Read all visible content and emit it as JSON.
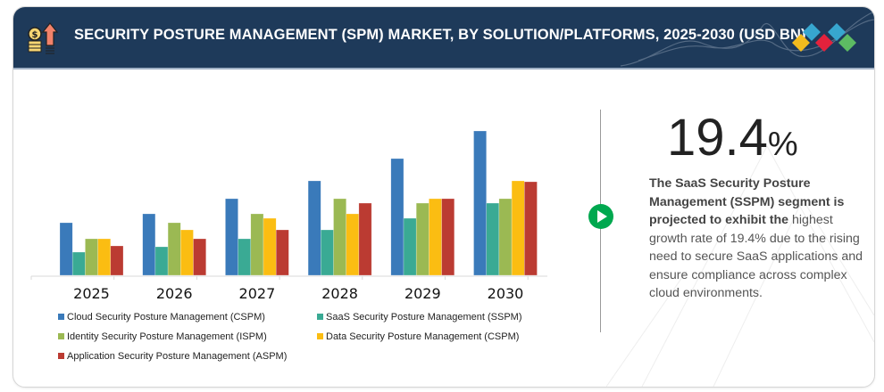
{
  "header": {
    "title": "SECURITY POSTURE MANAGEMENT (SPM) MARKET, BY SOLUTION/PLATFORMS, 2025-2030 (USD BN)",
    "icon": "coins-growth-arrow-icon",
    "logo": "colored-diamonds-logo"
  },
  "highlight": {
    "stat_value": "19.4",
    "stat_unit": "%",
    "bold_text": "The SaaS Security Posture Management (SSPM) segment is projected to exhibit the",
    "body_text": " highest growth rate of 19.4% due to the rising need to secure SaaS applications and ensure compliance across complex cloud environments.",
    "marker_icon": "play-circle-icon"
  },
  "chart_data": {
    "type": "bar",
    "title": "SECURITY POSTURE MANAGEMENT (SPM) MARKET, BY SOLUTION/PLATFORMS, 2025-2030 (USD BN)",
    "xlabel": "",
    "ylabel": "",
    "note": "No y-axis or value labels shown; values are relative bar heights (arbitrary units).",
    "ylim": [
      0,
      170
    ],
    "grid": false,
    "legend_position": "bottom",
    "categories": [
      "2025",
      "2026",
      "2027",
      "2028",
      "2029",
      "2030"
    ],
    "series": [
      {
        "name": "Cloud Security Posture Management (CSPM)",
        "color": "#3a7aba",
        "values": [
          59,
          69,
          86,
          106,
          131,
          162
        ]
      },
      {
        "name": "SaaS Security Posture Management (SSPM)",
        "color": "#3aaa94",
        "values": [
          26,
          32,
          41,
          51,
          64,
          81
        ]
      },
      {
        "name": "Identity Security Posture Management (ISPM)",
        "color": "#9bb953",
        "values": [
          41,
          59,
          69,
          86,
          81,
          86
        ]
      },
      {
        "name": "Data Security Posture Management (CSPM)",
        "color": "#fbbd12",
        "values": [
          41,
          51,
          64,
          69,
          86,
          106
        ]
      },
      {
        "name": "Application Security Posture Management (ASPM)",
        "color": "#bb3b32",
        "values": [
          33,
          41,
          51,
          81,
          86,
          105
        ]
      }
    ]
  }
}
